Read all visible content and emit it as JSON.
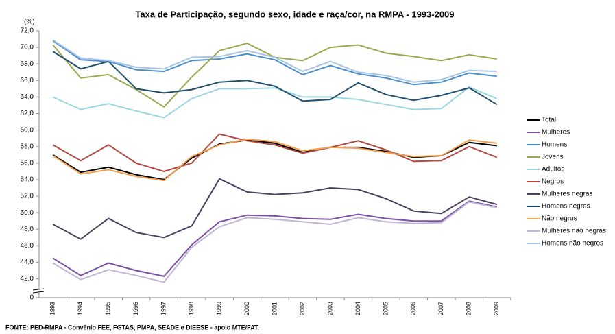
{
  "chart_data": {
    "type": "line",
    "title": "Taxa de Participação, segundo sexo, idade e raça/cor, na RMPA - 1993-2009",
    "y_label": "(%)",
    "source": "FONTE: PED-RMPA - Convênio FEE, FGTAS, PMPA, SEADE e DIEESE - apoio MTE/FAT.",
    "categories": [
      "1993",
      "1994",
      "1995",
      "1996",
      "1997",
      "1998",
      "1999",
      "2000",
      "2001",
      "2002",
      "2003",
      "2004",
      "2005",
      "2006",
      "2007",
      "2008",
      "2009"
    ],
    "ylim": [
      40.8,
      72
    ],
    "axis_break": true,
    "yticks": [
      0,
      {
        "value": 42,
        "label": "42,0"
      },
      {
        "value": 44,
        "label": "44,0"
      },
      {
        "value": 46,
        "label": "46,0"
      },
      {
        "value": 48,
        "label": "48,0"
      },
      {
        "value": 50,
        "label": "50,0"
      },
      {
        "value": 52,
        "label": "52,0"
      },
      {
        "value": 54,
        "label": "54,0"
      },
      {
        "value": 56,
        "label": "56,0"
      },
      {
        "value": 58,
        "label": "58,0"
      },
      {
        "value": 60,
        "label": "60,0"
      },
      {
        "value": 62,
        "label": "62,0"
      },
      {
        "value": 64,
        "label": "64,0"
      },
      {
        "value": 66,
        "label": "66,0"
      },
      {
        "value": 68,
        "label": "68,0"
      },
      {
        "value": 70,
        "label": "70,0"
      },
      {
        "value": 72,
        "label": "72,0"
      }
    ],
    "series": [
      {
        "name": "Total",
        "color": "#000000",
        "values": [
          57.0,
          54.9,
          55.5,
          54.6,
          54.0,
          56.6,
          58.3,
          58.8,
          58.4,
          57.3,
          57.9,
          57.9,
          57.4,
          56.7,
          56.9,
          58.5,
          58.1
        ]
      },
      {
        "name": "Mulheres",
        "color": "#7b4fa6",
        "values": [
          44.5,
          42.4,
          43.9,
          43.0,
          42.3,
          46.1,
          48.9,
          49.7,
          49.6,
          49.3,
          49.2,
          49.8,
          49.3,
          49.0,
          49.0,
          51.4,
          50.7
        ]
      },
      {
        "name": "Homens",
        "color": "#4a8ed0",
        "values": [
          70.8,
          68.5,
          68.3,
          67.3,
          67.1,
          68.4,
          68.6,
          69.2,
          68.5,
          66.7,
          67.8,
          66.8,
          66.3,
          65.5,
          65.8,
          66.9,
          66.5
        ]
      },
      {
        "name": "Jovens",
        "color": "#9aa84f",
        "values": [
          70.3,
          66.3,
          66.7,
          64.9,
          62.8,
          66.4,
          69.6,
          70.5,
          68.8,
          68.4,
          70.0,
          70.3,
          69.3,
          68.9,
          68.4,
          69.1,
          68.6
        ]
      },
      {
        "name": "Adultos",
        "color": "#9ad6e4",
        "values": [
          64.0,
          62.5,
          63.2,
          62.3,
          61.5,
          63.8,
          65.0,
          65.0,
          65.1,
          64.0,
          64.0,
          63.7,
          63.1,
          62.5,
          62.6,
          65.2,
          63.8
        ]
      },
      {
        "name": "Negros",
        "color": "#b04a40",
        "values": [
          58.2,
          56.3,
          58.2,
          56.0,
          55.0,
          56.0,
          59.5,
          58.7,
          58.2,
          57.2,
          57.9,
          58.7,
          57.6,
          56.2,
          56.3,
          58.0,
          56.7
        ]
      },
      {
        "name": "Mulheres negras",
        "color": "#4a4060",
        "values": [
          48.6,
          46.8,
          49.3,
          47.6,
          47.0,
          48.4,
          54.1,
          52.5,
          52.2,
          52.4,
          53.0,
          52.8,
          51.7,
          50.2,
          49.9,
          51.9,
          51.0
        ]
      },
      {
        "name": "Homens negros",
        "color": "#1f4e6e",
        "values": [
          69.5,
          67.4,
          68.3,
          65.0,
          64.5,
          64.9,
          65.8,
          66.0,
          65.3,
          63.5,
          63.7,
          65.7,
          64.3,
          63.6,
          64.2,
          65.1,
          63.1
        ]
      },
      {
        "name": "Não negros",
        "color": "#f2a04e",
        "values": [
          56.9,
          54.7,
          55.2,
          54.4,
          53.9,
          56.8,
          58.2,
          58.9,
          58.6,
          57.5,
          57.9,
          57.8,
          57.3,
          56.8,
          56.9,
          58.8,
          58.4
        ]
      },
      {
        "name": "Mulheres não negras",
        "color": "#c0b4d8",
        "values": [
          43.9,
          41.9,
          43.1,
          42.4,
          41.6,
          45.8,
          48.3,
          49.4,
          49.2,
          48.9,
          48.6,
          49.4,
          48.9,
          48.7,
          48.8,
          51.3,
          50.6
        ]
      },
      {
        "name": "Homens não negros",
        "color": "#a8c4e4",
        "values": [
          70.9,
          68.7,
          68.4,
          67.6,
          67.4,
          68.8,
          68.9,
          69.6,
          68.8,
          67.1,
          68.3,
          67.0,
          66.6,
          65.8,
          66.1,
          67.2,
          67.1
        ]
      }
    ]
  }
}
